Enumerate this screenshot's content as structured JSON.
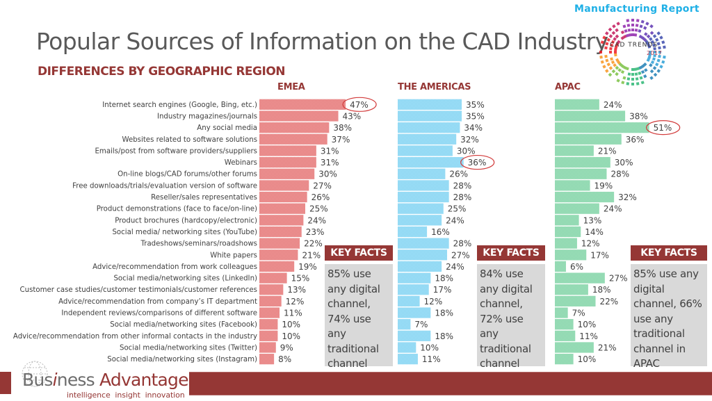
{
  "header": {
    "title": "Popular Sources of Information on the CAD Industry",
    "subtitle": "DIFFERENCES BY GEOGRAPHIC REGION",
    "report_label": "Manufacturing Report",
    "logo_line1": "CAD TRENDS",
    "logo_line2": "2017"
  },
  "colors": {
    "accent": "#953735",
    "emea_bar": "#e57373",
    "americas_bar": "#7fd3f2",
    "apac_bar": "#7ed3a4",
    "highlight_ring": "#d23b3b",
    "report_label": "#1fb0e6",
    "keyfacts_bg": "#d9d9d9"
  },
  "chart_data": {
    "type": "bar",
    "orientation": "horizontal",
    "title": "Popular Sources of Information on the CAD Industry",
    "subtitle": "DIFFERENCES BY GEOGRAPHIC REGION",
    "xlabel": "",
    "ylabel": "",
    "unit": "%",
    "xlim": [
      0,
      55
    ],
    "grid": false,
    "legend": "none",
    "categories": [
      "Internet search engines (Google, Bing, etc.)",
      "Industry magazines/journals",
      "Any social media",
      "Websites related to software solutions",
      "Emails/post from software providers/suppliers",
      "Webinars",
      "On-line blogs/CAD forums/other forums",
      "Free downloads/trials/evaluation version of software",
      "Reseller/sales representatives",
      "Product demonstrations (face to face/on-line)",
      "Product brochures (hardcopy/electronic)",
      "Social media/ networking sites (YouTube)",
      "Tradeshows/seminars/roadshows",
      "White papers",
      "Advice/recommendation from work colleagues",
      "Social media/networking sites (LinkedIn)",
      "Customer case studies/customer testimonials/customer references",
      "Advice/recommendation from company’s IT department",
      "Independent reviews/comparisons of different software",
      "Social media/networking sites (Facebook)",
      "Advice/recommendation from other informal contacts in the industry",
      "Social media/networking sites (Twitter)",
      "Social media/networking sites (Instagram)"
    ],
    "series": [
      {
        "name": "EMEA",
        "values": [
          47,
          43,
          38,
          37,
          31,
          31,
          30,
          27,
          26,
          25,
          24,
          23,
          22,
          21,
          19,
          15,
          13,
          12,
          11,
          10,
          10,
          9,
          8
        ],
        "highlighted_index": 0
      },
      {
        "name": "THE AMERICAS",
        "values": [
          35,
          35,
          34,
          32,
          30,
          36,
          26,
          28,
          28,
          25,
          24,
          16,
          28,
          27,
          24,
          18,
          17,
          12,
          18,
          7,
          18,
          10,
          11
        ],
        "highlighted_index": 5
      },
      {
        "name": "APAC",
        "values": [
          24,
          38,
          51,
          36,
          21,
          30,
          28,
          19,
          32,
          24,
          13,
          14,
          12,
          17,
          6,
          27,
          18,
          22,
          7,
          10,
          11,
          21,
          10
        ],
        "highlighted_index": 2
      }
    ]
  },
  "key_facts": [
    {
      "region": "EMEA",
      "heading": "KEY FACTS",
      "text": "85% use any digital channel, 74% use any traditional channel"
    },
    {
      "region": "THE AMERICAS",
      "heading": "KEY FACTS",
      "text": "84% use any digital channel, 72% use any traditional channel"
    },
    {
      "region": "APAC",
      "heading": "KEY FACTS",
      "text": "85% use any digital channel, 66% use any traditional channel in APAC"
    }
  ],
  "footer": {
    "brand_part1": "Bus",
    "brand_i": "i",
    "brand_part2": "ness",
    "brand_part3": "Advantage",
    "tagline": "intelligence  insight  innovation"
  }
}
